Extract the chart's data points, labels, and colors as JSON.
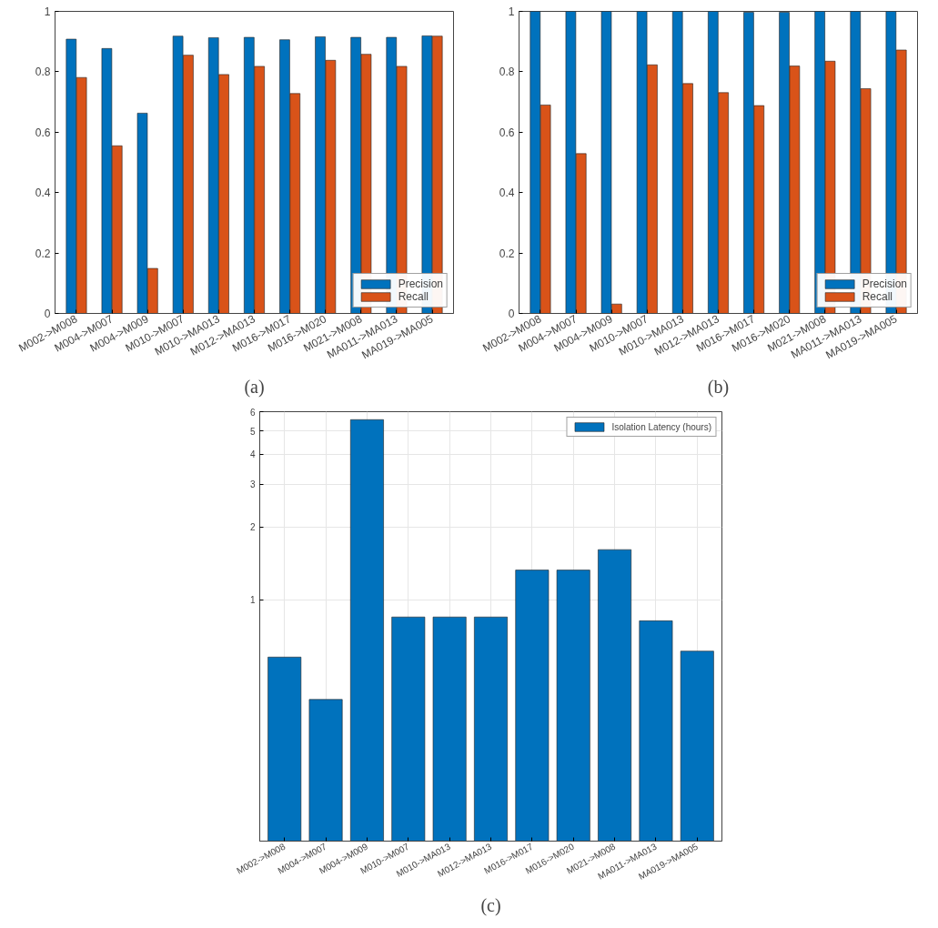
{
  "chart_data": [
    {
      "type": "bar",
      "categories": [
        "M002->M008",
        "M004->M007",
        "M004->M009",
        "M010->M007",
        "M010->MA013",
        "M012->MA013",
        "M016->M017",
        "M016->M020",
        "M021->M008",
        "MA011->MA013",
        "MA019->MA005"
      ],
      "series": [
        {
          "name": "Precision",
          "color": "#0072bd",
          "values": [
            0.908,
            0.877,
            0.663,
            0.918,
            0.913,
            0.914,
            0.906,
            0.916,
            0.914,
            0.914,
            0.919
          ]
        },
        {
          "name": "Recall",
          "color": "#d95319",
          "values": [
            0.781,
            0.555,
            0.149,
            0.855,
            0.791,
            0.818,
            0.728,
            0.838,
            0.858,
            0.818,
            0.918
          ]
        }
      ],
      "ylim": [
        0,
        1
      ],
      "yticks": [
        0,
        0.2,
        0.4,
        0.6,
        0.8,
        1
      ],
      "legend": "bottom right",
      "annotations": [
        "(a)"
      ]
    },
    {
      "type": "bar",
      "categories": [
        "M002->M008",
        "M004->M007",
        "M004->M009",
        "M010->M007",
        "M010->MA013",
        "M012->MA013",
        "M016->M017",
        "M016->M020",
        "M021->M008",
        "MA011->MA013",
        "MA019->MA005"
      ],
      "series": [
        {
          "name": "Precision",
          "color": "#0072bd",
          "values": [
            1,
            1,
            1,
            1,
            1,
            1,
            0.997,
            0.997,
            1,
            1,
            1
          ]
        },
        {
          "name": "Recall",
          "color": "#d95319",
          "values": [
            0.69,
            0.529,
            0.031,
            0.823,
            0.761,
            0.731,
            0.688,
            0.819,
            0.835,
            0.744,
            0.872
          ]
        }
      ],
      "ylim": [
        0,
        1
      ],
      "yticks": [
        0,
        0.2,
        0.4,
        0.6,
        0.8,
        1
      ],
      "legend": "bottom right",
      "annotations": [
        "(b)"
      ]
    },
    {
      "type": "bar",
      "categories": [
        "M002->M008",
        "M004->M007",
        "M004->M009",
        "M010->M007",
        "M010->MA013",
        "M012->MA013",
        "M016->M017",
        "M016->M020",
        "M021->M008",
        "MA011->MA013",
        "MA019->MA005"
      ],
      "series": [
        {
          "name": "Isolation Latency (hours)",
          "color": "#0072bd",
          "values": [
            0.578,
            0.386,
            5.56,
            0.847,
            0.847,
            0.847,
            1.325,
            1.325,
            1.61,
            0.817,
            0.612
          ]
        }
      ],
      "log": "y",
      "ylim": [
        0.1,
        6
      ],
      "yticks": [
        1,
        2,
        3,
        4,
        5,
        6
      ],
      "grid": true,
      "legend": "top right",
      "annotations": [
        "(c)"
      ]
    }
  ]
}
